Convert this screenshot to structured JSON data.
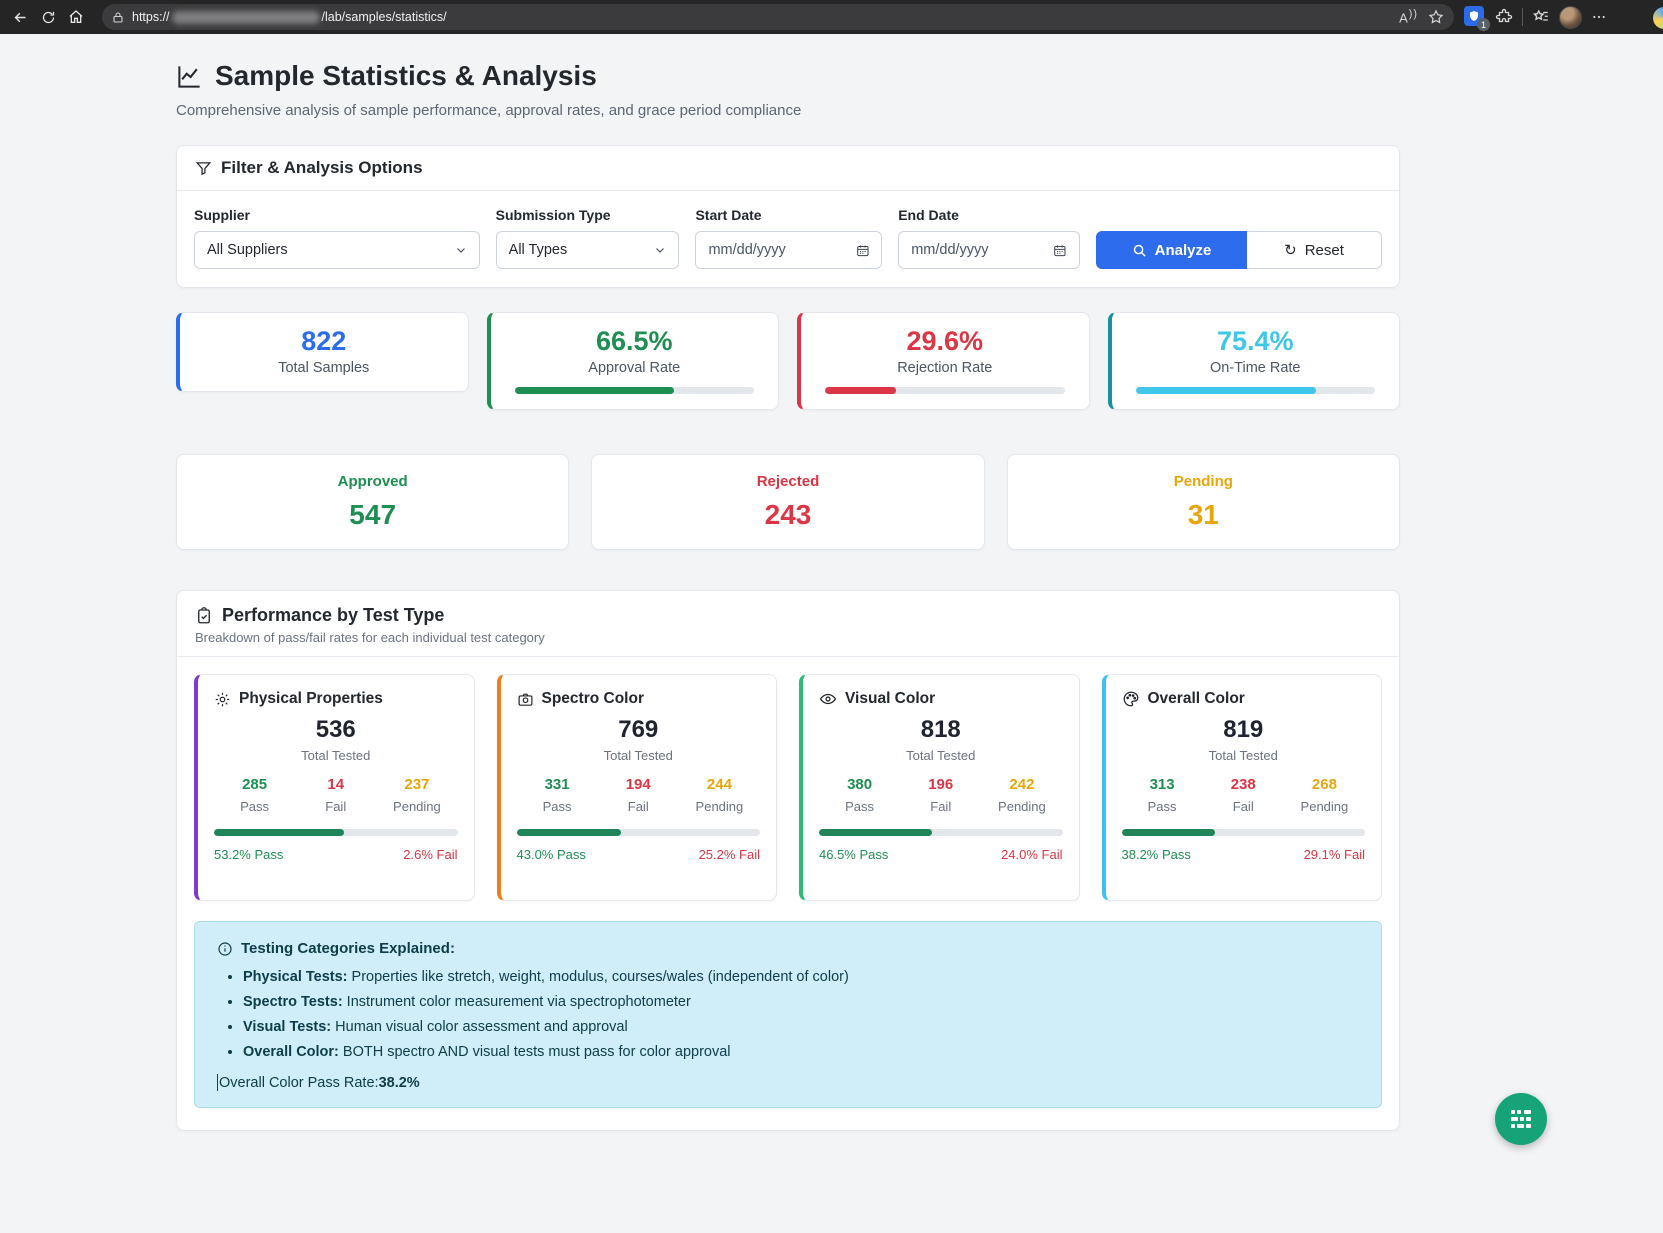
{
  "browser": {
    "url_prefix": "https://",
    "url_domain_redacted": true,
    "url_path": "/lab/samples/statistics/",
    "extension_badge": "1",
    "icons": [
      "back-icon",
      "refresh-icon",
      "home-icon",
      "lock-icon",
      "read-aloud-icon",
      "favorite-star-icon",
      "password-manager-icon",
      "extensions-icon",
      "favorites-hub-icon",
      "profile-avatar",
      "more-icon"
    ]
  },
  "header": {
    "title": "Sample Statistics & Analysis",
    "subtitle": "Comprehensive analysis of sample performance, approval rates, and grace period compliance"
  },
  "filters": {
    "title": "Filter & Analysis Options",
    "supplier": {
      "label": "Supplier",
      "value": "All Suppliers"
    },
    "submission_type": {
      "label": "Submission Type",
      "value": "All Types"
    },
    "start_date": {
      "label": "Start Date",
      "placeholder": "mm/dd/yyyy",
      "value": ""
    },
    "end_date": {
      "label": "End Date",
      "placeholder": "mm/dd/yyyy",
      "value": ""
    },
    "analyze_label": "Analyze",
    "reset_label": "Reset",
    "reset_glyph": "↻"
  },
  "summary_cards": [
    {
      "value": "822",
      "label": "Total Samples",
      "color": "#2d6cec",
      "progress": null
    },
    {
      "value": "66.5%",
      "label": "Approval Rate",
      "color": "#1f8e52",
      "progress": 66.5
    },
    {
      "value": "29.6%",
      "label": "Rejection Rate",
      "color": "#dc3545",
      "progress": 29.6
    },
    {
      "value": "75.4%",
      "label": "On-Time Rate",
      "color": "#3fc6e9",
      "border_color": "#1791a4",
      "progress": 75.4
    }
  ],
  "status_cards": [
    {
      "label": "Approved",
      "value": "547",
      "color": "#1f8e52"
    },
    {
      "label": "Rejected",
      "value": "243",
      "color": "#dc3545"
    },
    {
      "label": "Pending",
      "value": "31",
      "color": "#e9a50b"
    }
  ],
  "performance": {
    "title": "Performance by Test Type",
    "subtitle": "Breakdown of pass/fail rates for each individual test category",
    "col_labels": {
      "pass": "Pass",
      "fail": "Fail",
      "pending": "Pending",
      "total": "Total Tested"
    },
    "cards": [
      {
        "name": "Physical Properties",
        "icon": "gear-icon",
        "accent": "#7e3bd0",
        "total": "536",
        "pass": "285",
        "fail": "14",
        "pending": "237",
        "pass_pct": "53.2% Pass",
        "fail_pct": "2.6% Fail",
        "bar": 53.2
      },
      {
        "name": "Spectro Color",
        "icon": "camera-icon",
        "accent": "#ef7d1a",
        "total": "769",
        "pass": "331",
        "fail": "194",
        "pending": "244",
        "pass_pct": "43.0% Pass",
        "fail_pct": "25.2% Fail",
        "bar": 43.0
      },
      {
        "name": "Visual Color",
        "icon": "eye-icon",
        "accent": "#31b873",
        "total": "818",
        "pass": "380",
        "fail": "196",
        "pending": "242",
        "pass_pct": "46.5% Pass",
        "fail_pct": "24.0% Fail",
        "bar": 46.5
      },
      {
        "name": "Overall Color",
        "icon": "palette-icon",
        "accent": "#3dc2ee",
        "total": "819",
        "pass": "313",
        "fail": "238",
        "pending": "268",
        "pass_pct": "38.2% Pass",
        "fail_pct": "29.1% Fail",
        "bar": 38.2
      }
    ],
    "info": {
      "title": "Testing Categories Explained:",
      "items": [
        {
          "lead": "Physical Tests:",
          "text": " Properties like stretch, weight, modulus, courses/wales (independent of color)"
        },
        {
          "lead": "Spectro Tests:",
          "text": " Instrument color measurement via spectrophotometer"
        },
        {
          "lead": "Visual Tests:",
          "text": " Human visual color assessment and approval"
        },
        {
          "lead": "Overall Color:",
          "text": " BOTH spectro AND visual tests must pass for color approval"
        }
      ],
      "footer_label": "Overall Color Pass Rate: ",
      "footer_value": "38.2%"
    }
  },
  "fab": {
    "icon": "widget-grid-icon",
    "color": "#17a378"
  }
}
